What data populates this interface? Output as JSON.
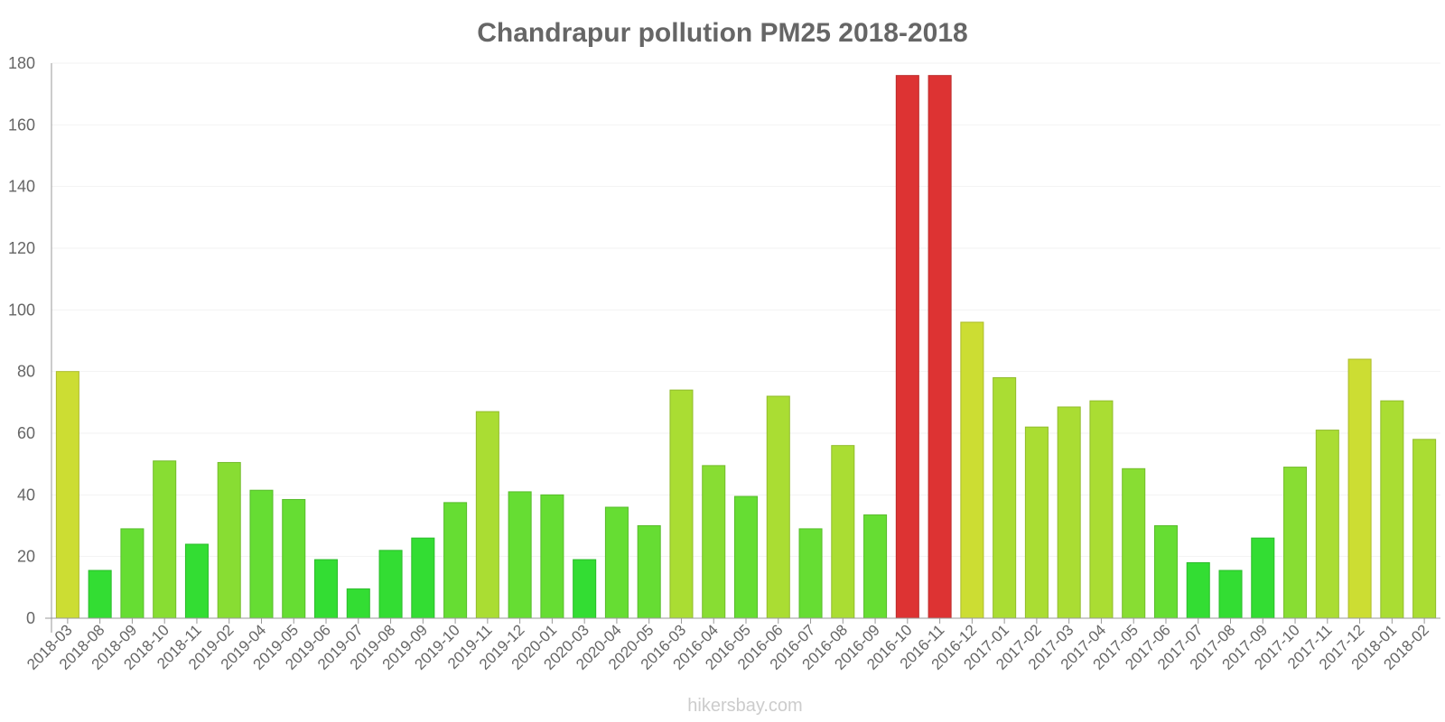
{
  "chart_data": {
    "type": "bar",
    "title": "Chandrapur pollution PM25 2018-2018",
    "xlabel": "",
    "ylabel": "",
    "ylim": [
      0,
      180
    ],
    "yticks": [
      0,
      20,
      40,
      60,
      80,
      100,
      120,
      140,
      160,
      180
    ],
    "grid": true,
    "categories": [
      "2018-03",
      "2018-08",
      "2018-09",
      "2018-10",
      "2018-11",
      "2019-02",
      "2019-04",
      "2019-05",
      "2019-06",
      "2019-07",
      "2019-08",
      "2019-09",
      "2019-10",
      "2019-11",
      "2019-12",
      "2020-01",
      "2020-03",
      "2020-04",
      "2020-05",
      "2016-03",
      "2016-04",
      "2016-05",
      "2016-06",
      "2016-07",
      "2016-08",
      "2016-09",
      "2016-10",
      "2016-11",
      "2016-12",
      "2017-01",
      "2017-02",
      "2017-03",
      "2017-04",
      "2017-05",
      "2017-06",
      "2017-07",
      "2017-08",
      "2017-09",
      "2017-10",
      "2017-11",
      "2017-12",
      "2018-01",
      "2018-02"
    ],
    "values": [
      80,
      15.5,
      29,
      51,
      24,
      50.5,
      41.5,
      38.5,
      19,
      9.5,
      22,
      26,
      37.5,
      67,
      41,
      40,
      19,
      36,
      30,
      74,
      49.5,
      39.5,
      72,
      29,
      56,
      33.5,
      176,
      176,
      96,
      78,
      62,
      68.5,
      70.5,
      48.5,
      30,
      18,
      15.5,
      26,
      49,
      61,
      84,
      70.5,
      58
    ],
    "source": "hikersbay.com",
    "colors": {
      "good": "#33dd33",
      "moderate_low": "#66dd33",
      "moderate": "#88dd33",
      "moderate_high": "#aadd33",
      "unhealthy_sensitive": "#ccdd33",
      "very_unhealthy": "#dd3333",
      "axis": "#999999",
      "grid": "#f2f2f2",
      "text": "#666666"
    }
  }
}
